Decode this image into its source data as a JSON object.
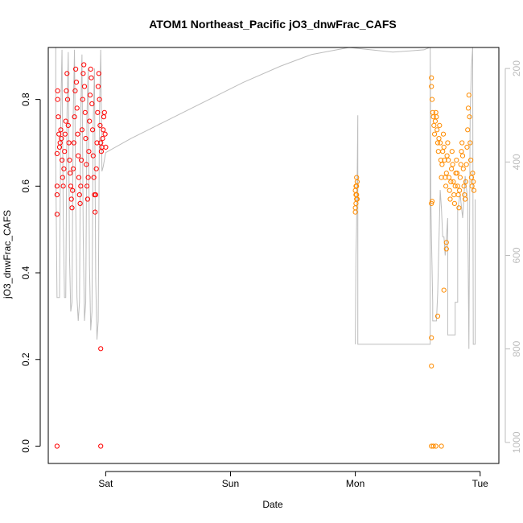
{
  "chart_data": {
    "type": "scatter",
    "title": "ATOM1 Northeast_Pacific jO3_dnwFrac_CAFS",
    "xlabel": "Date",
    "ylabel": "jO3_dnwFrac_CAFS",
    "x_ticks": [
      {
        "label": "Sat",
        "value": 0.0
      },
      {
        "label": "Sun",
        "value": 1.0
      },
      {
        "label": "Mon",
        "value": 2.0
      },
      {
        "label": "Tue",
        "value": 3.0
      }
    ],
    "xlim": [
      -0.46,
      3.15
    ],
    "ylim": [
      -0.04,
      0.92
    ],
    "y_ticks": [
      0.0,
      0.2,
      0.4,
      0.6,
      0.8
    ],
    "y2_ticks": [
      200,
      400,
      600,
      800,
      1000
    ],
    "y2lim": [
      1045,
      155
    ],
    "grid": false,
    "colors": {
      "series1": "#ff0000",
      "series2": "#ff8c00",
      "altitude": "#bdbdbd"
    },
    "series": [
      {
        "color": "#ff0000",
        "points": [
          [
            -0.39,
            0.0
          ],
          [
            -0.04,
            0.0
          ],
          [
            -0.04,
            0.225
          ],
          [
            -0.39,
            0.535
          ],
          [
            -0.39,
            0.58
          ],
          [
            -0.39,
            0.6
          ],
          [
            -0.39,
            0.675
          ],
          [
            -0.385,
            0.82
          ],
          [
            -0.385,
            0.8
          ],
          [
            -0.38,
            0.76
          ],
          [
            -0.375,
            0.72
          ],
          [
            -0.37,
            0.69
          ],
          [
            -0.365,
            0.7
          ],
          [
            -0.36,
            0.73
          ],
          [
            -0.355,
            0.71
          ],
          [
            -0.35,
            0.66
          ],
          [
            -0.345,
            0.62
          ],
          [
            -0.34,
            0.6
          ],
          [
            -0.335,
            0.64
          ],
          [
            -0.33,
            0.68
          ],
          [
            -0.325,
            0.72
          ],
          [
            -0.32,
            0.75
          ],
          [
            -0.315,
            0.82
          ],
          [
            -0.31,
            0.86
          ],
          [
            -0.305,
            0.8
          ],
          [
            -0.3,
            0.74
          ],
          [
            -0.295,
            0.7
          ],
          [
            -0.29,
            0.66
          ],
          [
            -0.285,
            0.63
          ],
          [
            -0.28,
            0.6
          ],
          [
            -0.275,
            0.57
          ],
          [
            -0.27,
            0.55
          ],
          [
            -0.265,
            0.59
          ],
          [
            -0.26,
            0.64
          ],
          [
            -0.255,
            0.7
          ],
          [
            -0.25,
            0.76
          ],
          [
            -0.245,
            0.82
          ],
          [
            -0.24,
            0.87
          ],
          [
            -0.235,
            0.84
          ],
          [
            -0.23,
            0.78
          ],
          [
            -0.225,
            0.72
          ],
          [
            -0.22,
            0.67
          ],
          [
            -0.215,
            0.62
          ],
          [
            -0.21,
            0.58
          ],
          [
            -0.205,
            0.56
          ],
          [
            -0.2,
            0.6
          ],
          [
            -0.195,
            0.66
          ],
          [
            -0.19,
            0.73
          ],
          [
            -0.185,
            0.8
          ],
          [
            -0.18,
            0.86
          ],
          [
            -0.175,
            0.88
          ],
          [
            -0.17,
            0.83
          ],
          [
            -0.165,
            0.77
          ],
          [
            -0.16,
            0.71
          ],
          [
            -0.155,
            0.65
          ],
          [
            -0.15,
            0.6
          ],
          [
            -0.145,
            0.57
          ],
          [
            -0.14,
            0.62
          ],
          [
            -0.135,
            0.68
          ],
          [
            -0.13,
            0.75
          ],
          [
            -0.125,
            0.81
          ],
          [
            -0.12,
            0.87
          ],
          [
            -0.115,
            0.85
          ],
          [
            -0.11,
            0.79
          ],
          [
            -0.105,
            0.73
          ],
          [
            -0.1,
            0.67
          ],
          [
            -0.095,
            0.62
          ],
          [
            -0.09,
            0.58
          ],
          [
            -0.085,
            0.54
          ],
          [
            -0.08,
            0.58
          ],
          [
            -0.075,
            0.64
          ],
          [
            -0.07,
            0.7
          ],
          [
            -0.065,
            0.77
          ],
          [
            -0.06,
            0.83
          ],
          [
            -0.055,
            0.86
          ],
          [
            -0.05,
            0.8
          ],
          [
            -0.045,
            0.74
          ],
          [
            -0.04,
            0.7
          ],
          [
            -0.035,
            0.68
          ],
          [
            -0.03,
            0.69
          ],
          [
            -0.025,
            0.71
          ],
          [
            -0.02,
            0.73
          ],
          [
            -0.015,
            0.76
          ],
          [
            -0.01,
            0.77
          ],
          [
            -0.005,
            0.72
          ],
          [
            0.0,
            0.69
          ]
        ]
      },
      {
        "color": "#ff8c00",
        "points": [
          [
            2.0,
            0.54
          ],
          [
            2.0,
            0.55
          ],
          [
            2.005,
            0.56
          ],
          [
            2.01,
            0.57
          ],
          [
            2.005,
            0.58
          ],
          [
            2.0,
            0.59
          ],
          [
            2.01,
            0.6
          ],
          [
            2.015,
            0.61
          ],
          [
            2.01,
            0.62
          ],
          [
            2.005,
            0.6
          ],
          [
            2.01,
            0.58
          ],
          [
            2.015,
            0.57
          ],
          [
            2.61,
            0.0
          ],
          [
            2.625,
            0.0
          ],
          [
            2.645,
            0.0
          ],
          [
            2.69,
            0.0
          ],
          [
            2.61,
            0.185
          ],
          [
            2.61,
            0.25
          ],
          [
            2.66,
            0.3
          ],
          [
            2.71,
            0.36
          ],
          [
            2.73,
            0.455
          ],
          [
            2.73,
            0.47
          ],
          [
            2.61,
            0.56
          ],
          [
            2.615,
            0.565
          ],
          [
            2.61,
            0.85
          ],
          [
            2.61,
            0.83
          ],
          [
            2.615,
            0.8
          ],
          [
            2.62,
            0.77
          ],
          [
            2.625,
            0.76
          ],
          [
            2.63,
            0.74
          ],
          [
            2.635,
            0.72
          ],
          [
            2.64,
            0.75
          ],
          [
            2.645,
            0.77
          ],
          [
            2.65,
            0.76
          ],
          [
            2.655,
            0.73
          ],
          [
            2.66,
            0.7
          ],
          [
            2.665,
            0.68
          ],
          [
            2.67,
            0.71
          ],
          [
            2.675,
            0.74
          ],
          [
            2.68,
            0.7
          ],
          [
            2.685,
            0.66
          ],
          [
            2.69,
            0.62
          ],
          [
            2.695,
            0.65
          ],
          [
            2.7,
            0.68
          ],
          [
            2.705,
            0.72
          ],
          [
            2.71,
            0.69
          ],
          [
            2.715,
            0.66
          ],
          [
            2.72,
            0.62
          ],
          [
            2.725,
            0.6
          ],
          [
            2.73,
            0.63
          ],
          [
            2.735,
            0.67
          ],
          [
            2.74,
            0.7
          ],
          [
            2.745,
            0.66
          ],
          [
            2.75,
            0.62
          ],
          [
            2.755,
            0.59
          ],
          [
            2.76,
            0.57
          ],
          [
            2.765,
            0.61
          ],
          [
            2.77,
            0.64
          ],
          [
            2.775,
            0.68
          ],
          [
            2.78,
            0.65
          ],
          [
            2.785,
            0.61
          ],
          [
            2.79,
            0.58
          ],
          [
            2.795,
            0.56
          ],
          [
            2.8,
            0.6
          ],
          [
            2.805,
            0.63
          ],
          [
            2.81,
            0.66
          ],
          [
            2.815,
            0.63
          ],
          [
            2.82,
            0.6
          ],
          [
            2.825,
            0.58
          ],
          [
            2.83,
            0.55
          ],
          [
            2.835,
            0.59
          ],
          [
            2.84,
            0.62
          ],
          [
            2.845,
            0.65
          ],
          [
            2.85,
            0.68
          ],
          [
            2.855,
            0.7
          ],
          [
            2.86,
            0.67
          ],
          [
            2.865,
            0.64
          ],
          [
            2.87,
            0.6
          ],
          [
            2.875,
            0.58
          ],
          [
            2.88,
            0.57
          ],
          [
            2.885,
            0.61
          ],
          [
            2.89,
            0.65
          ],
          [
            2.895,
            0.69
          ],
          [
            2.9,
            0.73
          ],
          [
            2.905,
            0.78
          ],
          [
            2.91,
            0.81
          ],
          [
            2.915,
            0.76
          ],
          [
            2.92,
            0.7
          ],
          [
            2.925,
            0.66
          ],
          [
            2.93,
            0.62
          ],
          [
            2.935,
            0.6
          ],
          [
            2.94,
            0.63
          ],
          [
            2.945,
            0.61
          ],
          [
            2.95,
            0.59
          ]
        ]
      }
    ]
  }
}
